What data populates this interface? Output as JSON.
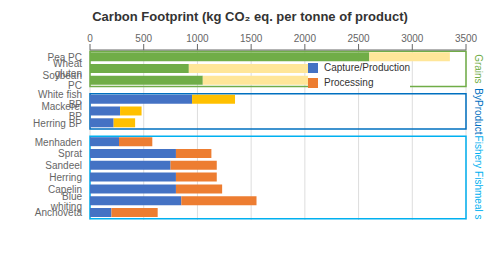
{
  "chart_data": {
    "type": "bar",
    "orientation": "horizontal",
    "stacked": true,
    "title": "Carbon Footprint (kg CO₂ eq. per tonne of product)",
    "categories": [
      "Anchoveta",
      "Blue whiting",
      "Capelin",
      "Herring",
      "Sandeel",
      "Sprat",
      "Menhaden",
      "Herring BP",
      "Mackerel BP",
      "White fish BP",
      "Soybean PC",
      "Wheat gluten",
      "Pea PC"
    ],
    "series": [
      {
        "name": "Capture/Production",
        "colors": [
          "#4472C4",
          "#4472C4",
          "#4472C4",
          "#4472C4",
          "#4472C4",
          "#4472C4",
          "#4472C4",
          "#4472C4",
          "#4472C4",
          "#4472C4",
          "#70AD47",
          "#70AD47",
          "#70AD47"
        ],
        "values": [
          200,
          850,
          800,
          800,
          750,
          800,
          270,
          220,
          280,
          950,
          1050,
          920,
          2600
        ]
      },
      {
        "name": "Processing",
        "colors": [
          "#ED7D31",
          "#ED7D31",
          "#ED7D31",
          "#ED7D31",
          "#ED7D31",
          "#ED7D31",
          "#ED7D31",
          "#FFC000",
          "#FFC000",
          "#FFC000",
          "#FFE699",
          "#FFE699",
          "#FFE699"
        ],
        "values": [
          430,
          700,
          430,
          380,
          430,
          330,
          310,
          200,
          200,
          400,
          1550,
          1900,
          750
        ]
      }
    ],
    "xlim": [
      0,
      3500
    ],
    "xticks": [
      0,
      500,
      1000,
      1500,
      2000,
      2500,
      3000,
      3500
    ],
    "grid": true,
    "legend": "upper right",
    "annotations": [
      {
        "text": "Fishery Fishmeal s",
        "color": "#00B0F0",
        "from": "Anchoveta",
        "to": "Menhaden"
      },
      {
        "text": "ByProduct",
        "color": "#0070C0",
        "from": "Herring BP",
        "to": "White fish BP"
      },
      {
        "text": "Grains",
        "color": "#70AD47",
        "from": "Soybean PC",
        "to": "Pea PC"
      }
    ]
  }
}
